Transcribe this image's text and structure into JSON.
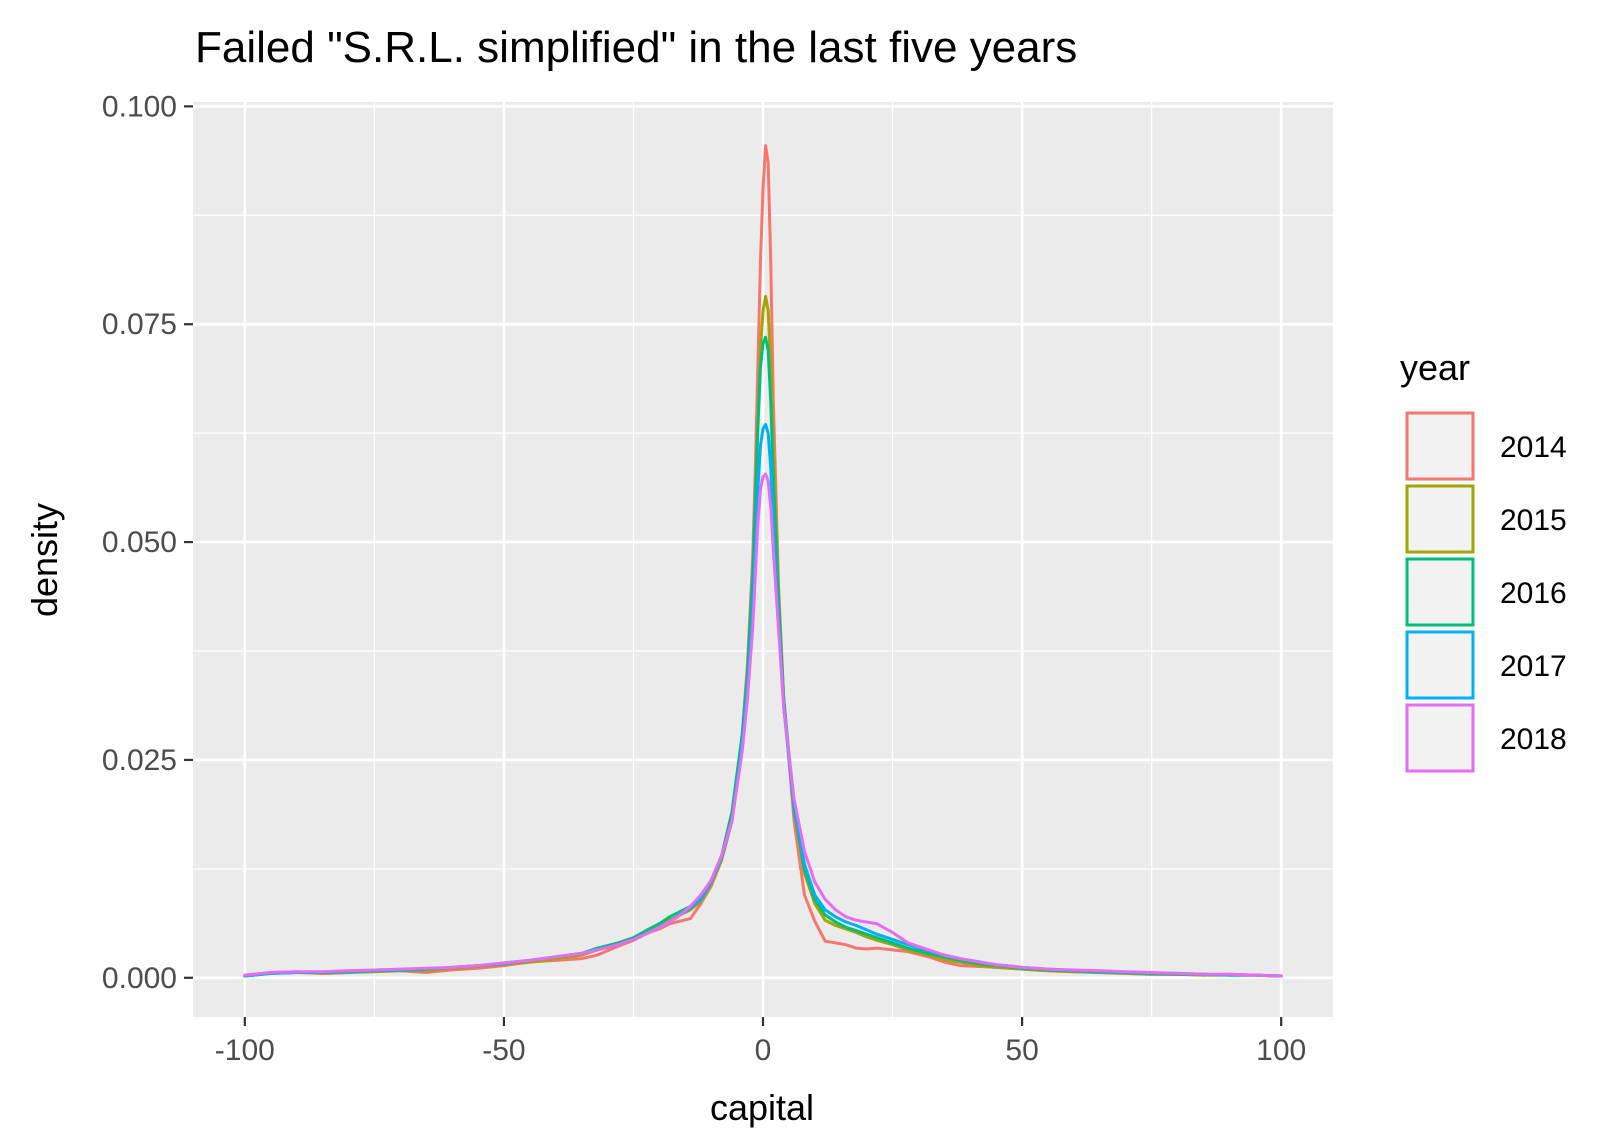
{
  "chart_data": {
    "type": "line",
    "title": "Failed \"S.R.L. simplified\" in the last five years",
    "xlabel": "capital",
    "ylabel": "density",
    "xlim": [
      -110,
      110
    ],
    "ylim": [
      -0.0045,
      0.1005
    ],
    "x_ticks": [
      -100,
      -50,
      0,
      50,
      100
    ],
    "x_tick_labels": [
      "-100",
      "-50",
      "0",
      "50",
      "100"
    ],
    "y_ticks": [
      0,
      0.025,
      0.05,
      0.075,
      0.1
    ],
    "y_tick_labels": [
      "0.000",
      "0.025",
      "0.050",
      "0.075",
      "0.100"
    ],
    "grid": true,
    "legend": {
      "title": "year",
      "position": "right"
    },
    "x": [
      -100,
      -95,
      -90,
      -85,
      -80,
      -75,
      -70,
      -65,
      -60,
      -55,
      -50,
      -45,
      -40,
      -35,
      -32,
      -28,
      -25,
      -22,
      -20,
      -18,
      -16,
      -14,
      -12,
      -10,
      -8,
      -6,
      -4,
      -3,
      -2,
      -1.5,
      -1,
      -0.5,
      0,
      0.5,
      1,
      1.5,
      2,
      3,
      4,
      6,
      8,
      10,
      12,
      14,
      16,
      18,
      20,
      22,
      25,
      28,
      32,
      35,
      38,
      42,
      45,
      50,
      55,
      60,
      65,
      70,
      75,
      80,
      85,
      90,
      95,
      100
    ],
    "series": [
      {
        "name": "2014",
        "color": "#F8766D",
        "values": [
          0.0002,
          0.0006,
          0.0007,
          0.0005,
          0.0006,
          0.0008,
          0.0008,
          0.0006,
          0.0009,
          0.0011,
          0.0014,
          0.0018,
          0.002,
          0.0022,
          0.0026,
          0.0036,
          0.0043,
          0.0052,
          0.0056,
          0.0062,
          0.0065,
          0.0068,
          0.0085,
          0.0105,
          0.0135,
          0.018,
          0.028,
          0.036,
          0.048,
          0.058,
          0.07,
          0.082,
          0.0905,
          0.0955,
          0.0935,
          0.082,
          0.066,
          0.045,
          0.032,
          0.018,
          0.0095,
          0.0065,
          0.0042,
          0.004,
          0.0038,
          0.0034,
          0.0033,
          0.0034,
          0.0032,
          0.003,
          0.0024,
          0.0018,
          0.0014,
          0.0013,
          0.0012,
          0.001,
          0.0008,
          0.0007,
          0.0006,
          0.0005,
          0.0004,
          0.0004,
          0.0003,
          0.0004,
          0.0003,
          0.0002
        ]
      },
      {
        "name": "2015",
        "color": "#A3A500",
        "values": [
          0.0003,
          0.0006,
          0.0006,
          0.0005,
          0.0006,
          0.0007,
          0.0008,
          0.0008,
          0.0011,
          0.0013,
          0.0016,
          0.0018,
          0.0022,
          0.0026,
          0.0032,
          0.0038,
          0.0044,
          0.0055,
          0.006,
          0.0066,
          0.0072,
          0.0078,
          0.0088,
          0.0108,
          0.0135,
          0.018,
          0.027,
          0.034,
          0.045,
          0.054,
          0.064,
          0.072,
          0.0765,
          0.0782,
          0.0765,
          0.07,
          0.06,
          0.044,
          0.032,
          0.019,
          0.012,
          0.0085,
          0.0066,
          0.006,
          0.0056,
          0.0052,
          0.0047,
          0.0043,
          0.0038,
          0.0032,
          0.0026,
          0.0021,
          0.0018,
          0.0014,
          0.0012,
          0.001,
          0.0008,
          0.0007,
          0.0006,
          0.0005,
          0.0004,
          0.0004,
          0.0003,
          0.0003,
          0.0003,
          0.0002
        ]
      },
      {
        "name": "2016",
        "color": "#00BF7D",
        "values": [
          0.0002,
          0.0005,
          0.0006,
          0.0006,
          0.0007,
          0.0008,
          0.0009,
          0.001,
          0.0012,
          0.0014,
          0.0016,
          0.002,
          0.0024,
          0.0028,
          0.0034,
          0.004,
          0.0046,
          0.0056,
          0.0062,
          0.007,
          0.0076,
          0.0082,
          0.0092,
          0.0112,
          0.014,
          0.019,
          0.028,
          0.035,
          0.046,
          0.054,
          0.063,
          0.07,
          0.0728,
          0.0735,
          0.072,
          0.066,
          0.057,
          0.043,
          0.032,
          0.0195,
          0.0125,
          0.009,
          0.0072,
          0.0064,
          0.0058,
          0.0054,
          0.005,
          0.0046,
          0.004,
          0.0034,
          0.0028,
          0.0024,
          0.002,
          0.0016,
          0.0014,
          0.0011,
          0.0009,
          0.0008,
          0.0007,
          0.0006,
          0.0005,
          0.0004,
          0.0004,
          0.0003,
          0.0003,
          0.0002
        ]
      },
      {
        "name": "2017",
        "color": "#00B0F6",
        "values": [
          0.0002,
          0.0005,
          0.0006,
          0.0006,
          0.0007,
          0.0008,
          0.0009,
          0.001,
          0.0012,
          0.0014,
          0.0017,
          0.002,
          0.0024,
          0.0028,
          0.0032,
          0.0038,
          0.0044,
          0.0052,
          0.0058,
          0.0064,
          0.0072,
          0.008,
          0.009,
          0.011,
          0.0138,
          0.018,
          0.027,
          0.033,
          0.042,
          0.049,
          0.056,
          0.061,
          0.063,
          0.0635,
          0.0625,
          0.0585,
          0.052,
          0.041,
          0.031,
          0.0195,
          0.013,
          0.0095,
          0.0078,
          0.007,
          0.0064,
          0.006,
          0.0055,
          0.005,
          0.0044,
          0.0038,
          0.0031,
          0.0026,
          0.0022,
          0.0018,
          0.0015,
          0.0012,
          0.001,
          0.0008,
          0.0007,
          0.0006,
          0.0005,
          0.0005,
          0.0004,
          0.0003,
          0.0003,
          0.0002
        ]
      },
      {
        "name": "2018",
        "color": "#E76BF3",
        "values": [
          0.0003,
          0.0006,
          0.0007,
          0.0007,
          0.0008,
          0.0009,
          0.001,
          0.0011,
          0.0012,
          0.0014,
          0.0017,
          0.002,
          0.0024,
          0.0028,
          0.0032,
          0.0038,
          0.0044,
          0.0052,
          0.0058,
          0.0064,
          0.0072,
          0.0082,
          0.0095,
          0.0112,
          0.014,
          0.018,
          0.026,
          0.032,
          0.04,
          0.046,
          0.052,
          0.056,
          0.0575,
          0.0578,
          0.057,
          0.054,
          0.049,
          0.04,
          0.031,
          0.0205,
          0.0145,
          0.011,
          0.009,
          0.0078,
          0.007,
          0.0066,
          0.0064,
          0.0062,
          0.0052,
          0.004,
          0.0032,
          0.0026,
          0.0022,
          0.0018,
          0.0015,
          0.0012,
          0.001,
          0.0009,
          0.0008,
          0.0007,
          0.0006,
          0.0005,
          0.0004,
          0.0004,
          0.0003,
          0.0002
        ]
      }
    ]
  }
}
